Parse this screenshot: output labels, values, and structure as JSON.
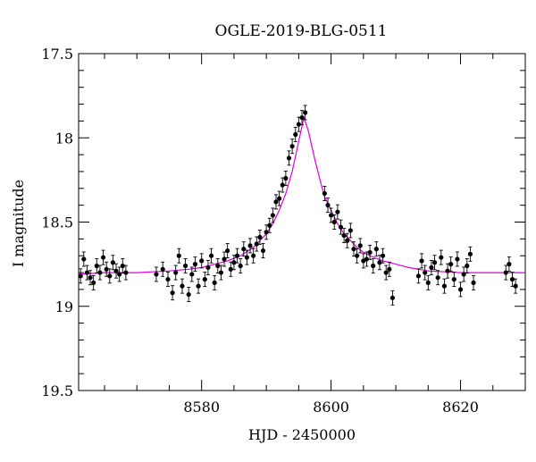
{
  "chart_data": {
    "type": "scatter",
    "title": "OGLE-2019-BLG-0511",
    "xlabel": "HJD - 2450000",
    "ylabel": "I magnitude",
    "xlim": [
      8561,
      8630
    ],
    "ylim": [
      17.5,
      19.5
    ],
    "y_inverted": true,
    "x_ticks": [
      8580,
      8600,
      8620
    ],
    "y_ticks": [
      17.5,
      18,
      18.5,
      19,
      19.5
    ],
    "y_tick_labels": [
      "17.5",
      "18",
      "18.5",
      "19",
      "19.5"
    ],
    "grid": false,
    "colors": {
      "data": "#000000",
      "model": "#e000e0"
    },
    "series": [
      {
        "type": "scatter_errorbar",
        "x": [
          8561.3,
          8561.8,
          8562.3,
          8562.8,
          8563.3,
          8563.8,
          8564.3,
          8564.8,
          8565.3,
          8565.8,
          8566.3,
          8566.8,
          8567.3,
          8567.8,
          8568.3,
          8573.0,
          8574.0,
          8574.8,
          8575.5,
          8576.0,
          8576.5,
          8577.0,
          8577.5,
          8578.0,
          8578.5,
          8579.0,
          8579.5,
          8580.0,
          8580.5,
          8581.0,
          8581.5,
          8582.0,
          8582.5,
          8583.0,
          8583.5,
          8584.0,
          8584.5,
          8585.0,
          8585.5,
          8586.0,
          8586.5,
          8587.0,
          8587.5,
          8588.0,
          8588.5,
          8589.0,
          8589.5,
          8590.0,
          8590.5,
          8591.0,
          8591.5,
          8592.0,
          8592.5,
          8593.0,
          8593.5,
          8594.0,
          8594.5,
          8595.0,
          8595.5,
          8596.0,
          8599.0,
          8599.5,
          8600.0,
          8600.5,
          8601.0,
          8601.5,
          8602.0,
          8602.5,
          8603.0,
          8603.5,
          8604.0,
          8604.5,
          8605.0,
          8605.5,
          8606.0,
          8606.5,
          8607.0,
          8607.5,
          8608.0,
          8608.5,
          8609.0,
          8609.5,
          8613.5,
          8614.0,
          8614.5,
          8615.0,
          8615.5,
          8616.0,
          8616.5,
          8617.0,
          8617.5,
          8618.0,
          8618.5,
          8619.0,
          8619.5,
          8620.0,
          8620.5,
          8621.0,
          8621.5,
          8622.0,
          8627.0,
          8627.5,
          8628.0,
          8628.5
        ],
        "y": [
          18.82,
          18.72,
          18.8,
          18.83,
          18.86,
          18.76,
          18.8,
          18.71,
          18.78,
          18.82,
          18.74,
          18.79,
          18.81,
          18.76,
          18.8,
          18.81,
          18.78,
          18.84,
          18.92,
          18.8,
          18.7,
          18.88,
          18.76,
          18.93,
          18.81,
          18.75,
          18.88,
          18.73,
          18.84,
          18.77,
          18.7,
          18.86,
          18.76,
          18.8,
          18.72,
          18.67,
          18.78,
          18.74,
          18.7,
          18.76,
          18.66,
          18.71,
          18.64,
          18.7,
          18.63,
          18.59,
          18.67,
          18.56,
          18.52,
          18.46,
          18.38,
          18.36,
          18.28,
          18.24,
          18.12,
          18.05,
          17.98,
          17.92,
          17.88,
          17.85,
          18.33,
          18.4,
          18.46,
          18.5,
          18.44,
          18.53,
          18.58,
          18.61,
          18.55,
          18.66,
          18.7,
          18.64,
          18.73,
          18.72,
          18.68,
          18.76,
          18.66,
          18.74,
          18.7,
          18.8,
          18.78,
          18.95,
          18.82,
          18.73,
          18.8,
          18.86,
          18.77,
          18.74,
          18.83,
          18.71,
          18.88,
          18.79,
          18.75,
          18.84,
          18.72,
          18.9,
          18.81,
          18.76,
          18.69,
          18.86,
          18.8,
          18.75,
          18.84,
          18.88
        ]
      },
      {
        "type": "line",
        "name": "model",
        "x": [
          8561,
          8565,
          8570,
          8575,
          8578,
          8580,
          8582,
          8584,
          8586,
          8588,
          8590,
          8591,
          8592,
          8593,
          8594,
          8595,
          8595.8,
          8596.5,
          8597.5,
          8598.5,
          8599,
          8600,
          8601,
          8602,
          8603,
          8604,
          8605,
          8606,
          8608,
          8610,
          8612,
          8615,
          8620,
          8625,
          8630
        ],
        "y": [
          18.81,
          18.8,
          18.8,
          18.79,
          18.78,
          18.77,
          18.75,
          18.73,
          18.7,
          18.65,
          18.57,
          18.51,
          18.43,
          18.33,
          18.2,
          18.02,
          17.88,
          17.96,
          18.13,
          18.28,
          18.35,
          18.43,
          18.51,
          18.57,
          18.61,
          18.65,
          18.68,
          18.7,
          18.73,
          18.75,
          18.77,
          18.79,
          18.8,
          18.8,
          18.8
        ]
      }
    ]
  }
}
